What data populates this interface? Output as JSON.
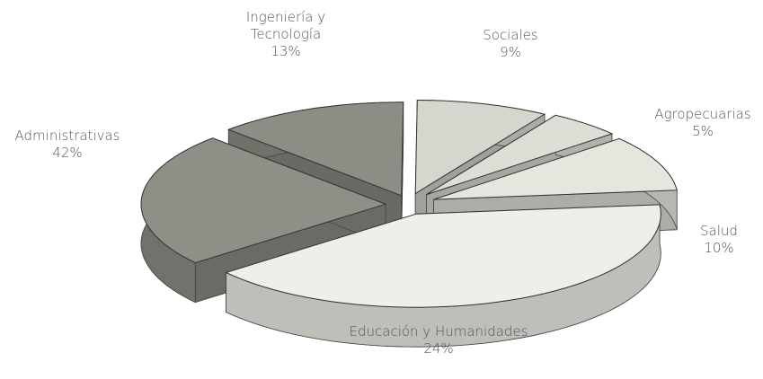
{
  "chart_data": {
    "type": "pie3d",
    "categories": [
      "Ingeniería y Tecnología",
      "Sociales",
      "Agropecuarias",
      "Salud",
      "Administrativas",
      "Educación y Humanidades"
    ],
    "values": [
      13,
      9,
      5,
      10,
      42,
      24
    ],
    "value_labels": [
      "13%",
      "9%",
      "5%",
      "10%",
      "42%",
      "24%"
    ],
    "colors": [
      "#8d8d85",
      "#d6d6ce",
      "#deded6",
      "#e6e6de",
      "#efefe9",
      "#8f8f87"
    ]
  }
}
